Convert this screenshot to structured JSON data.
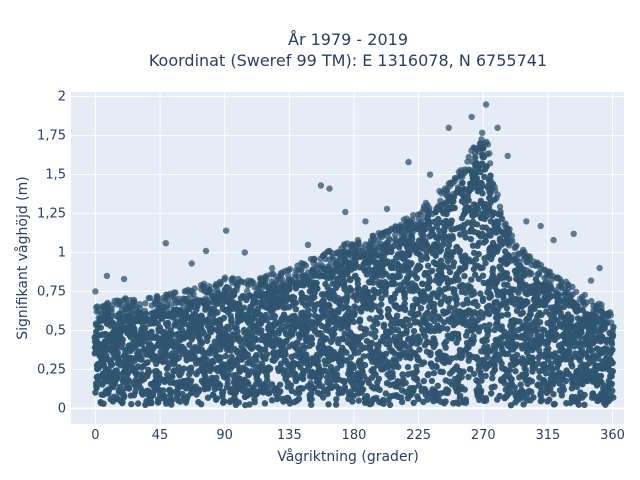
{
  "chart_data": {
    "type": "scatter",
    "title_lines": [
      "År 1979 - 2019",
      "Koordinat (Sweref 99 TM): E 1316078, N 6755741"
    ],
    "xlabel": "Vågriktning (grader)",
    "ylabel": "Signifikant våghöjd (m)",
    "xlim": [
      -17,
      368
    ],
    "ylim": [
      -0.1,
      2.03
    ],
    "x_ticks": [
      0,
      45,
      90,
      135,
      180,
      225,
      270,
      315,
      360
    ],
    "x_tick_labels": [
      "0",
      "45",
      "90",
      "135",
      "180",
      "225",
      "270",
      "315",
      "360"
    ],
    "y_ticks": [
      0,
      0.25,
      0.5,
      0.75,
      1,
      1.25,
      1.5,
      1.75,
      2
    ],
    "y_tick_labels": [
      "0",
      "0,25",
      "0,5",
      "0,75",
      "1",
      "1,25",
      "1,5",
      "1,75",
      "2"
    ],
    "grid": true,
    "marker_color": "#2f5470",
    "plot_background": "#e5ecf6",
    "envelope": {
      "x": [
        0,
        15,
        30,
        45,
        60,
        75,
        90,
        105,
        120,
        135,
        150,
        165,
        180,
        195,
        210,
        225,
        240,
        250,
        255,
        260,
        265,
        270,
        275,
        280,
        285,
        295,
        305,
        315,
        330,
        345,
        360
      ],
      "y_max": [
        0.55,
        0.6,
        0.62,
        0.63,
        0.66,
        0.7,
        0.74,
        0.73,
        0.76,
        0.8,
        0.86,
        0.92,
        0.98,
        1.02,
        1.08,
        1.18,
        1.3,
        1.38,
        1.45,
        1.52,
        1.62,
        1.68,
        1.58,
        1.3,
        1.1,
        0.95,
        0.85,
        0.8,
        0.7,
        0.6,
        0.53
      ],
      "y_min": 0.02
    },
    "outliers": [
      {
        "x": 49,
        "y": 1.06
      },
      {
        "x": 91,
        "y": 1.14
      },
      {
        "x": 157,
        "y": 1.43
      },
      {
        "x": 163,
        "y": 1.41
      },
      {
        "x": 218,
        "y": 1.58
      },
      {
        "x": 233,
        "y": 1.5
      },
      {
        "x": 246,
        "y": 1.8
      },
      {
        "x": 262,
        "y": 1.87
      },
      {
        "x": 272,
        "y": 1.95
      },
      {
        "x": 280,
        "y": 1.8
      },
      {
        "x": 287,
        "y": 1.62
      },
      {
        "x": 300,
        "y": 1.2
      },
      {
        "x": 333,
        "y": 1.12
      },
      {
        "x": 351,
        "y": 0.9
      },
      {
        "x": 8,
        "y": 0.85
      },
      {
        "x": 20,
        "y": 0.83
      },
      {
        "x": 67,
        "y": 0.93
      },
      {
        "x": 77,
        "y": 1.01
      },
      {
        "x": 104,
        "y": 1.0
      },
      {
        "x": 123,
        "y": 0.9
      },
      {
        "x": 148,
        "y": 1.05
      },
      {
        "x": 174,
        "y": 1.26
      },
      {
        "x": 188,
        "y": 1.2
      },
      {
        "x": 203,
        "y": 1.28
      },
      {
        "x": 319,
        "y": 1.08
      },
      {
        "x": 345,
        "y": 0.82
      },
      {
        "x": 310,
        "y": 1.17
      },
      {
        "x": 0,
        "y": 0.75
      }
    ]
  }
}
